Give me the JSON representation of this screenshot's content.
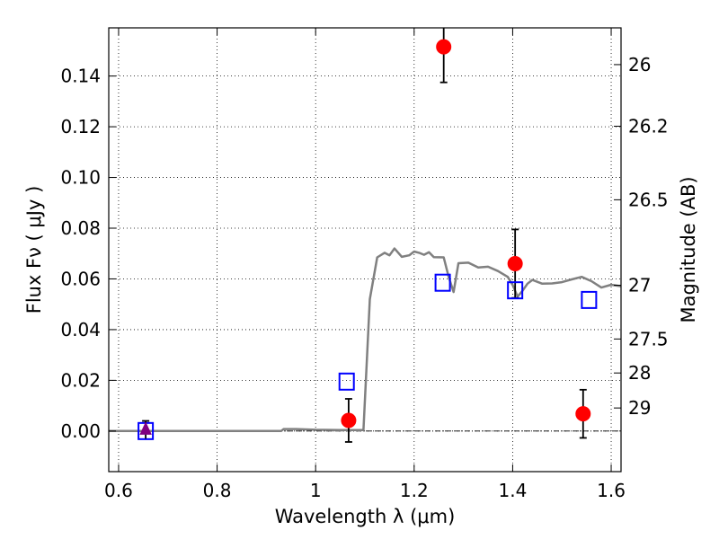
{
  "chart_data": {
    "type": "scatter",
    "xlabel": "Wavelength  λ (μm)",
    "ylabel_left": "Flux  Fν  ( μJy )",
    "ylabel_right": "Magnitude (AB)",
    "xlim": [
      0.58,
      1.62
    ],
    "ylim": [
      -0.016,
      0.159
    ],
    "x_ticks": [
      0.6,
      0.8,
      1.0,
      1.2,
      1.4,
      1.6
    ],
    "x_tick_labels": [
      "0.6",
      "0.8",
      "1",
      "1.2",
      "1.4",
      "1.6"
    ],
    "y_ticks": [
      0.0,
      0.02,
      0.04,
      0.06,
      0.08,
      0.1,
      0.12,
      0.14
    ],
    "y_tick_labels": [
      "0.00",
      "0.02",
      "0.04",
      "0.06",
      "0.08",
      "0.10",
      "0.12",
      "0.14"
    ],
    "right_ticks": [
      {
        "label": "26",
        "flux": 0.1445
      },
      {
        "label": "26.2",
        "flux": 0.1202
      },
      {
        "label": "26.5",
        "flux": 0.0912
      },
      {
        "label": "27",
        "flux": 0.0575
      },
      {
        "label": "27.5",
        "flux": 0.0363
      },
      {
        "label": "28",
        "flux": 0.0229
      },
      {
        "label": "29",
        "flux": 0.0091
      }
    ],
    "grid": true,
    "series": [
      {
        "name": "model_sed",
        "kind": "line",
        "color": "#808080",
        "x": [
          0.58,
          0.93,
          0.935,
          0.96,
          1.0,
          1.05,
          1.09,
          1.097,
          1.11,
          1.125,
          1.14,
          1.15,
          1.16,
          1.175,
          1.19,
          1.2,
          1.21,
          1.22,
          1.23,
          1.24,
          1.26,
          1.27,
          1.28,
          1.29,
          1.31,
          1.33,
          1.35,
          1.37,
          1.39,
          1.4,
          1.41,
          1.42,
          1.43,
          1.44,
          1.46,
          1.48,
          1.5,
          1.52,
          1.54,
          1.56,
          1.58,
          1.6,
          1.62
        ],
        "y": [
          0.0,
          0.0,
          0.0008,
          0.0008,
          0.0005,
          0.0004,
          0.0004,
          0.0004,
          0.052,
          0.0685,
          0.0703,
          0.0693,
          0.072,
          0.0687,
          0.0693,
          0.0708,
          0.0703,
          0.0695,
          0.0705,
          0.0686,
          0.0685,
          0.0608,
          0.0548,
          0.0662,
          0.0664,
          0.0645,
          0.0648,
          0.0631,
          0.0608,
          0.0576,
          0.053,
          0.0553,
          0.0581,
          0.0596,
          0.0581,
          0.0582,
          0.0587,
          0.0598,
          0.0608,
          0.0591,
          0.0566,
          0.0577,
          0.0571
        ]
      },
      {
        "name": "measured_flux",
        "kind": "points",
        "marker": "circle",
        "color": "#ff0000",
        "points": [
          {
            "x": 1.067,
            "y": 0.0042,
            "err": 0.0085
          },
          {
            "x": 1.26,
            "y": 0.1515,
            "err": 0.014
          },
          {
            "x": 1.405,
            "y": 0.066,
            "err": 0.0135
          },
          {
            "x": 1.543,
            "y": 0.0068,
            "err": 0.0095
          }
        ]
      },
      {
        "name": "model_band_flux",
        "kind": "points",
        "marker": "open-square",
        "color": "#0000ff",
        "points": [
          {
            "x": 0.655,
            "y": 0.0
          },
          {
            "x": 1.063,
            "y": 0.0195
          },
          {
            "x": 1.258,
            "y": 0.0585
          },
          {
            "x": 1.405,
            "y": 0.0555
          },
          {
            "x": 1.555,
            "y": 0.0517
          }
        ]
      },
      {
        "name": "upper_limit",
        "kind": "points",
        "marker": "triangle",
        "color": "#800080",
        "points": [
          {
            "x": 0.655,
            "y": 0.0005,
            "err": 0.0035
          }
        ]
      }
    ]
  }
}
